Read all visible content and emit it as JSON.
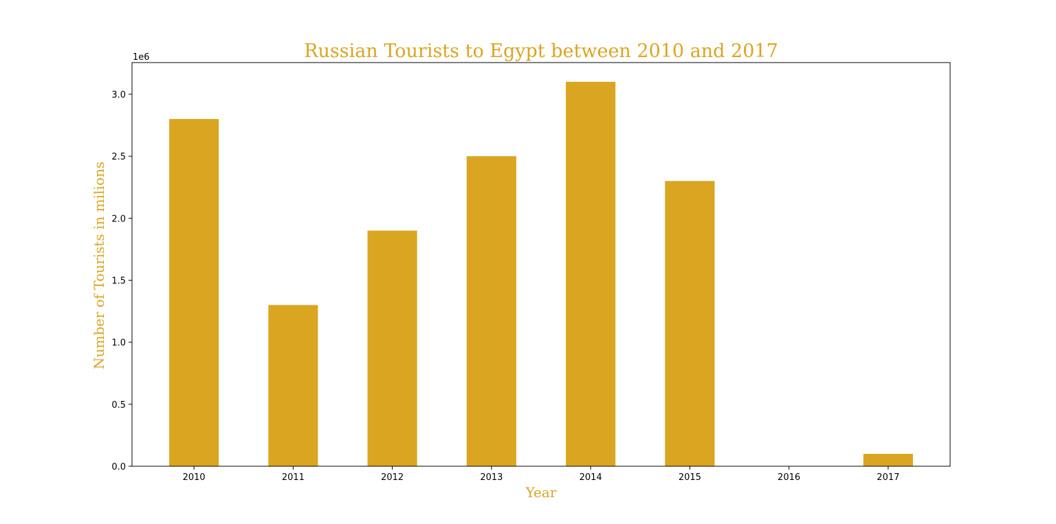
{
  "chart_data": {
    "type": "bar",
    "title": "Russian Tourists to Egypt between 2010 and 2017",
    "xlabel": "Year",
    "ylabel": "Number of Tourists in milions",
    "y_offset_label": "1e6",
    "categories": [
      "2010",
      "2011",
      "2012",
      "2013",
      "2014",
      "2015",
      "2016",
      "2017"
    ],
    "values": [
      2800000,
      1300000,
      1900000,
      2500000,
      3100000,
      2300000,
      0,
      100000
    ],
    "ylim": [
      0,
      3255000
    ],
    "y_ticks": [
      0,
      500000,
      1000000,
      1500000,
      2000000,
      2500000,
      3000000
    ],
    "y_tick_labels": [
      "0.0",
      "0.5",
      "1.0",
      "1.5",
      "2.0",
      "2.5",
      "3.0"
    ],
    "grid": false,
    "legend": "none",
    "bar_color": "#DAA520",
    "label_color": "#DAA520"
  }
}
